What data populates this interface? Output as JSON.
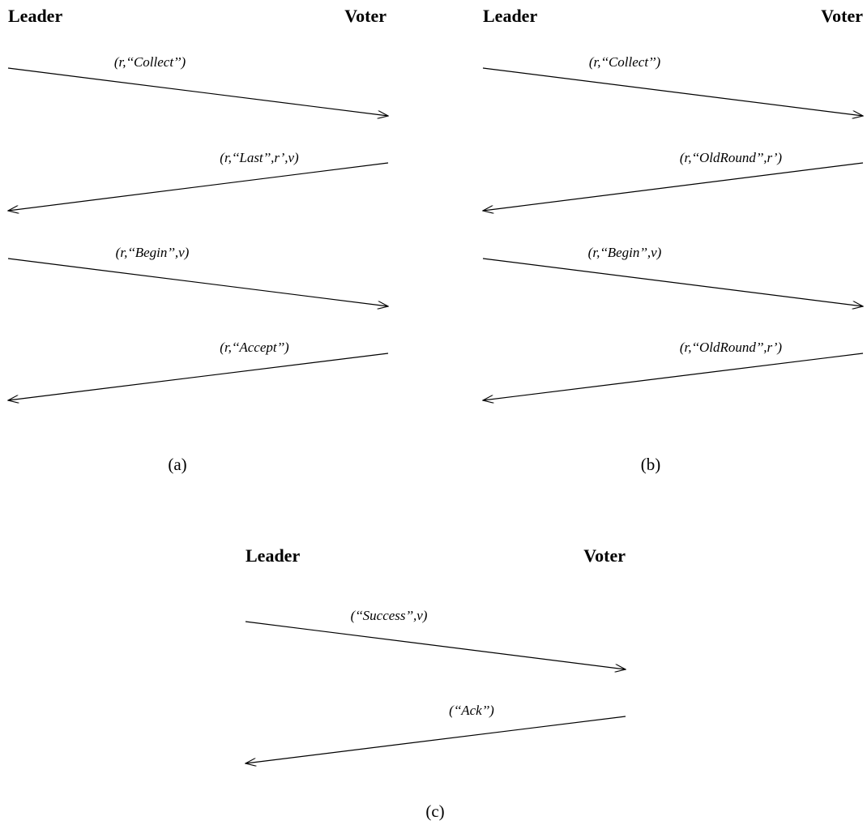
{
  "panels": [
    {
      "id": "a",
      "leader_label": "Leader",
      "voter_label": "Voter",
      "caption": "(a)",
      "messages": [
        {
          "label": "(r,‘‘Collect’’)",
          "direction": "leader-to-voter"
        },
        {
          "label": "(r,‘‘Last’’,r’,v)",
          "direction": "voter-to-leader"
        },
        {
          "label": "(r,‘‘Begin’’,v)",
          "direction": "leader-to-voter"
        },
        {
          "label": "(r,‘‘Accept’’)",
          "direction": "voter-to-leader"
        }
      ]
    },
    {
      "id": "b",
      "leader_label": "Leader",
      "voter_label": "Voter",
      "caption": "(b)",
      "messages": [
        {
          "label": "(r,‘‘Collect’’)",
          "direction": "leader-to-voter"
        },
        {
          "label": "(r,‘‘OldRound’’,r’)",
          "direction": "voter-to-leader"
        },
        {
          "label": "(r,‘‘Begin’’,v)",
          "direction": "leader-to-voter"
        },
        {
          "label": "(r,‘‘OldRound’’,r’)",
          "direction": "voter-to-leader"
        }
      ]
    },
    {
      "id": "c",
      "leader_label": "Leader",
      "voter_label": "Voter",
      "caption": "(c)",
      "messages": [
        {
          "label": "(‘‘Success’’,v)",
          "direction": "leader-to-voter"
        },
        {
          "label": "(‘‘Ack’’)",
          "direction": "voter-to-leader"
        }
      ]
    }
  ]
}
